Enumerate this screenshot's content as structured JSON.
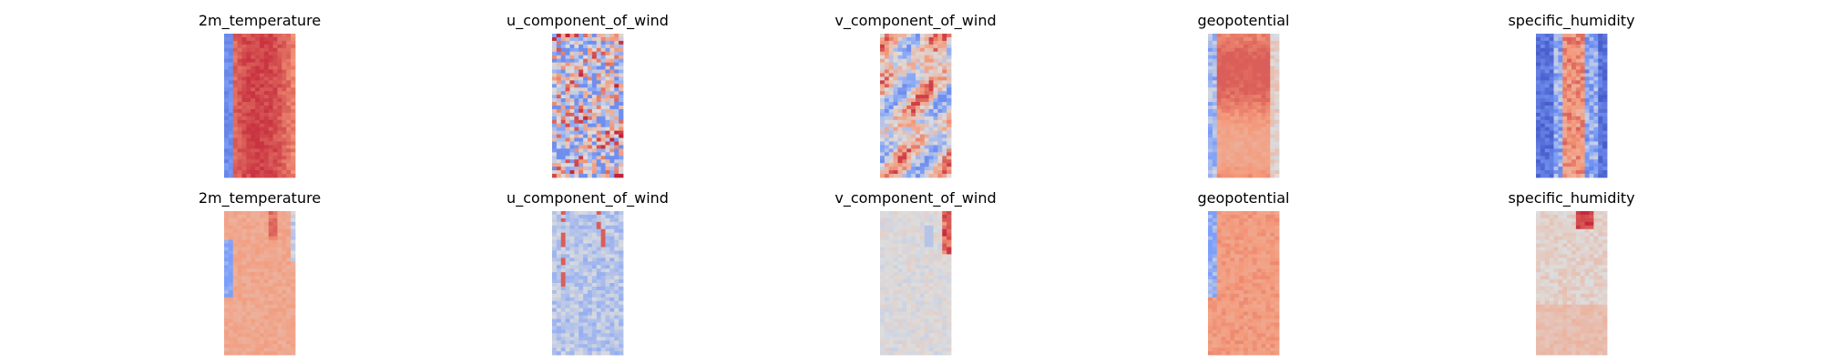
{
  "chart_data": {
    "type": "heatmap",
    "colormap": "coolwarm",
    "axes_visible": false,
    "grid": false,
    "legend": "none",
    "layout": {
      "rows": 2,
      "cols": 5
    },
    "rows": [
      {
        "panels": [
          {
            "title": "2m_temperature",
            "pattern": "warm_core_cool_edges_left",
            "value_range": [
              0.15,
              0.92
            ]
          },
          {
            "title": "u_component_of_wind",
            "pattern": "noisy_mixed",
            "value_range": [
              0.2,
              0.95
            ]
          },
          {
            "title": "v_component_of_wind",
            "pattern": "swirling_mixed",
            "value_range": [
              0.2,
              0.9
            ]
          },
          {
            "title": "geopotential",
            "pattern": "warm_core_cool_edges",
            "value_range": [
              0.15,
              0.85
            ]
          },
          {
            "title": "specific_humidity",
            "pattern": "blue_edges_red_center",
            "value_range": [
              0.05,
              0.85
            ]
          }
        ]
      },
      {
        "panels": [
          {
            "title": "2m_temperature",
            "pattern": "mostly_warm_left_blue_strip",
            "value_range": [
              0.25,
              0.85
            ]
          },
          {
            "title": "u_component_of_wind",
            "pattern": "light_blue_with_red_streaks",
            "value_range": [
              0.3,
              0.9
            ]
          },
          {
            "title": "v_component_of_wind",
            "pattern": "neutral_with_red_top_right",
            "value_range": [
              0.4,
              0.95
            ]
          },
          {
            "title": "geopotential",
            "pattern": "warm_with_blue_left_edge",
            "value_range": [
              0.25,
              0.85
            ]
          },
          {
            "title": "specific_humidity",
            "pattern": "neutral_warm_red_top",
            "value_range": [
              0.45,
              0.95
            ]
          }
        ]
      }
    ]
  }
}
